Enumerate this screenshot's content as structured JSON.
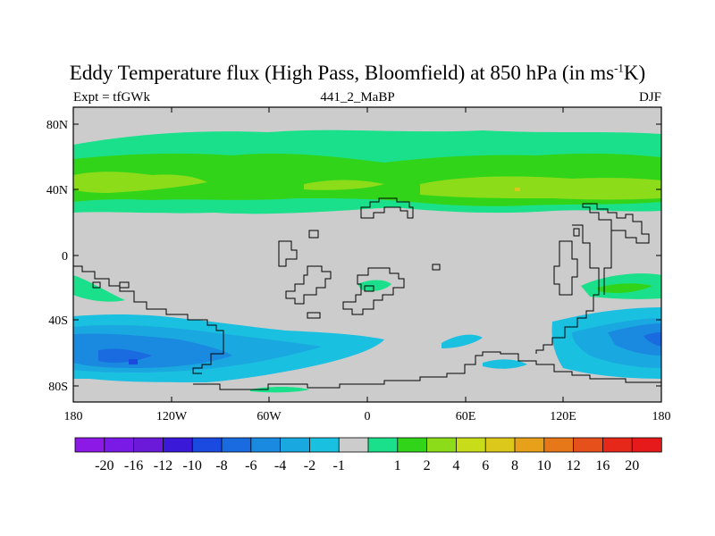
{
  "title": {
    "main": "Eddy Temperature flux (High Pass, Bloomfield) at 850 hPa (in ms",
    "sup": "-1",
    "end": "K)"
  },
  "subtitle": {
    "left": "Expt = tfGWk",
    "center": "441_2_MaBP",
    "right": "DJF"
  },
  "y_ticks": [
    "80N",
    "40N",
    "0",
    "40S",
    "80S"
  ],
  "x_ticks": [
    "180",
    "120W",
    "60W",
    "0",
    "60E",
    "120E",
    "180"
  ],
  "colorbar": {
    "colors": [
      "#8c19e6",
      "#7a1ae6",
      "#6a1ad8",
      "#3a1ad8",
      "#1a4ae0",
      "#1a6ae0",
      "#1a8ae0",
      "#1aa8e0",
      "#1ac0e0",
      "#cccccc",
      "#1ae08c",
      "#32d41a",
      "#8cdc1a",
      "#c8dc1a",
      "#dcc81a",
      "#e6a01a",
      "#e6781a",
      "#e6501a",
      "#e6281a",
      "#e61a1a"
    ],
    "labels": [
      "-20",
      "-16",
      "-12",
      "-10",
      "-8",
      "-6",
      "-4",
      "-2",
      "-1",
      "1",
      "2",
      "4",
      "6",
      "8",
      "10",
      "12",
      "16",
      "20"
    ]
  },
  "legend_colors": {
    "land_missing": "#cccccc"
  }
}
